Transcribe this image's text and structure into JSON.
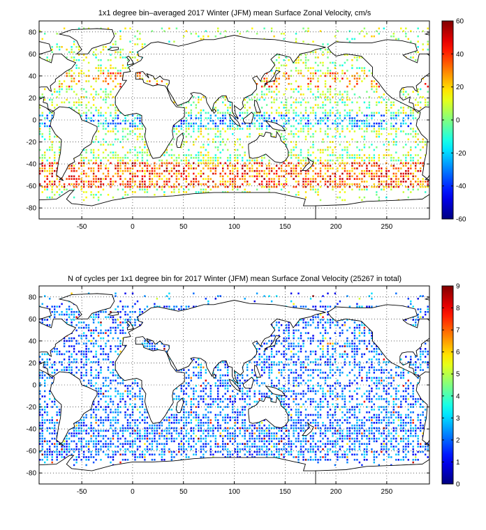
{
  "panels": [
    {
      "title": "1x1 degree bin–averaged 2017 Winter (JFM) mean Surface Zonal Velocity, cm/s",
      "x_ticks": [
        "-50",
        "0",
        "50",
        "100",
        "150",
        "200",
        "250"
      ],
      "y_ticks": [
        "80",
        "60",
        "40",
        "20",
        "0",
        "-20",
        "-40",
        "-60",
        "-80"
      ],
      "colorbar_ticks": [
        "60",
        "40",
        "20",
        "0",
        "-20",
        "-40",
        "-60"
      ],
      "colorbar": {
        "min": -60,
        "max": 60,
        "colormap": "jet"
      }
    },
    {
      "title": "N of cycles per 1x1 degree bin for 2017 Winter (JFM) mean Surface Zonal Velocity (25267 in total)",
      "x_ticks": [
        "-50",
        "0",
        "50",
        "100",
        "150",
        "200",
        "250"
      ],
      "y_ticks": [
        "80",
        "60",
        "40",
        "20",
        "0",
        "-20",
        "-40",
        "-60",
        "-80"
      ],
      "colorbar_ticks": [
        "9",
        "8",
        "7",
        "6",
        "5",
        "4",
        "3",
        "2",
        "1",
        "0"
      ],
      "colorbar": {
        "min": 0,
        "max": 9,
        "colormap": "jet"
      }
    }
  ],
  "map_extent": {
    "lon_min": -92,
    "lon_max": 292,
    "lat_min": -90,
    "lat_max": 90
  },
  "chart_data": [
    {
      "type": "heatmap",
      "title": "1x1 degree bin–averaged 2017 Winter (JFM) mean Surface Zonal Velocity, cm/s",
      "xlim": [
        -92,
        292
      ],
      "ylim": [
        -90,
        90
      ],
      "clim": [
        -60,
        60
      ],
      "grid": true
    },
    {
      "type": "heatmap",
      "title": "N of cycles per 1x1 degree bin for 2017 Winter (JFM) mean Surface Zonal Velocity (25267 in total)",
      "xlim": [
        -92,
        292
      ],
      "ylim": [
        -90,
        90
      ],
      "clim": [
        0,
        9
      ],
      "grid": true
    }
  ]
}
